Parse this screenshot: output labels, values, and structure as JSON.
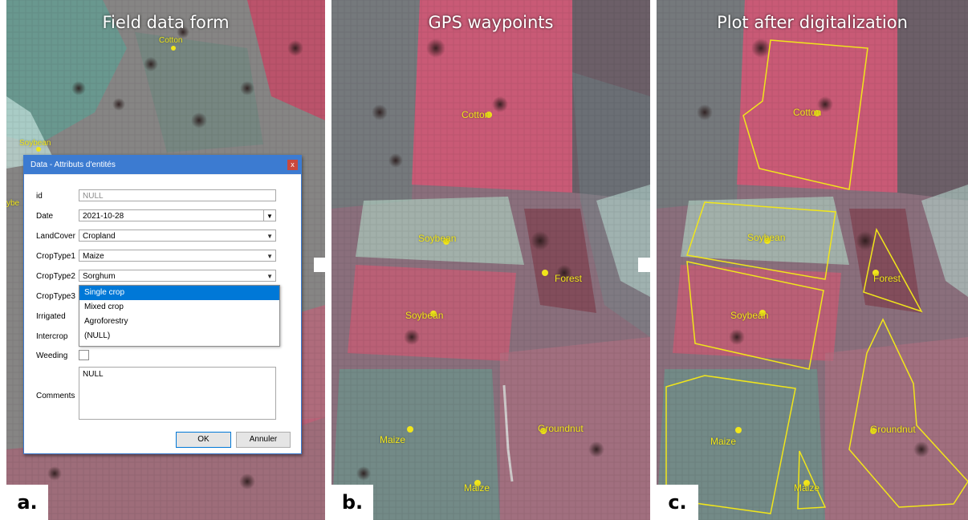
{
  "panels": {
    "a": {
      "title": "Field data form",
      "letter": "a."
    },
    "b": {
      "title": "GPS waypoints",
      "letter": "b."
    },
    "c": {
      "title": "Plot after digitalization",
      "letter": "c."
    }
  },
  "panel_a_labels": {
    "cotton": "Cotton",
    "soybean": "Soybean",
    "cut_edge": "ybe"
  },
  "dialog": {
    "title": "Data - Attributs d'entités",
    "close": "x",
    "fields": {
      "id": {
        "label": "id",
        "value": "NULL"
      },
      "date": {
        "label": "Date",
        "value": "2021-10-28"
      },
      "landcover": {
        "label": "LandCover",
        "value": "Cropland"
      },
      "croptype1": {
        "label": "CropType1",
        "value": "Maize"
      },
      "croptype2": {
        "label": "CropType2",
        "value": "Sorghum"
      },
      "croptype3": {
        "label": "CropType3"
      },
      "irrigated": {
        "label": "Irrigated"
      },
      "intercrop": {
        "label": "Intercrop"
      },
      "weeding": {
        "label": "Weeding",
        "checked": false
      },
      "comments": {
        "label": "Comments",
        "value": "NULL"
      }
    },
    "dropdown_options": [
      "Single crop",
      "Mixed crop",
      "Agroforestry",
      "(NULL)"
    ],
    "dropdown_selected_index": 0,
    "ok": "OK",
    "cancel": "Annuler"
  },
  "waypoints": {
    "cotton": "Cotton",
    "soybean": "Soybean",
    "forest": "Forest",
    "maize": "Maize",
    "groundnut": "Groundnut"
  },
  "colors": {
    "waypoint": "#f1e61a",
    "plot_outline": "#f1e61a",
    "dialog_title": "#3c7bd1",
    "dropdown_selection": "#0078d7"
  }
}
